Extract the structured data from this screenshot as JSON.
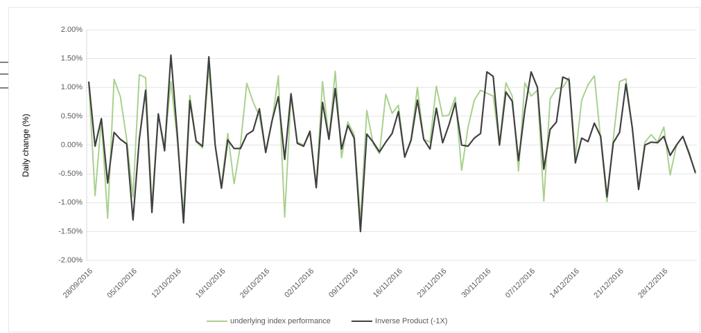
{
  "chart_data": {
    "type": "line",
    "y_label": "Daily change (%)",
    "categories": [
      "28/09/2016",
      null,
      null,
      null,
      null,
      null,
      null,
      "05/10/2016",
      null,
      null,
      null,
      null,
      null,
      null,
      "12/10/2016",
      null,
      null,
      null,
      null,
      null,
      null,
      "19/10/2016",
      null,
      null,
      null,
      null,
      null,
      null,
      "26/10/2016",
      null,
      null,
      null,
      null,
      null,
      null,
      "02/11/2016",
      null,
      null,
      null,
      null,
      null,
      null,
      "09/11/2016",
      null,
      null,
      null,
      null,
      null,
      null,
      "16/11/2016",
      null,
      null,
      null,
      null,
      null,
      null,
      "23/11/2016",
      null,
      null,
      null,
      null,
      null,
      null,
      "30/11/2016",
      null,
      null,
      null,
      null,
      null,
      null,
      "07/12/2016",
      null,
      null,
      null,
      null,
      null,
      null,
      "14/12/2016",
      null,
      null,
      null,
      null,
      null,
      null,
      "21/12/2016",
      null,
      null,
      null,
      null,
      null,
      null,
      "28/12/2016",
      null,
      null,
      null,
      null,
      null
    ],
    "series": [
      {
        "name": "underlying index performance",
        "color": "#a9d18e",
        "values": [
          1.1,
          -0.88,
          0.44,
          -1.27,
          1.14,
          0.84,
          0.1,
          -0.9,
          1.22,
          1.17,
          -1.05,
          0.5,
          0.0,
          1.1,
          0.1,
          -1.2,
          0.86,
          0.05,
          -0.05,
          1.35,
          0.0,
          -0.7,
          0.2,
          -0.67,
          0.0,
          1.07,
          0.75,
          0.5,
          -0.1,
          0.4,
          1.2,
          -1.25,
          0.85,
          0.05,
          0.0,
          0.2,
          -0.7,
          1.1,
          0.1,
          1.28,
          -0.22,
          0.4,
          0.18,
          -1.3,
          0.6,
          0.02,
          -0.15,
          0.88,
          0.55,
          0.69,
          -0.2,
          0.1,
          1.0,
          0.1,
          0.05,
          1.02,
          0.5,
          0.52,
          0.83,
          -0.44,
          0.3,
          0.78,
          0.95,
          0.9,
          0.85,
          0.0,
          1.08,
          0.85,
          -0.45,
          1.08,
          0.85,
          0.95,
          -0.97,
          0.8,
          0.98,
          1.0,
          1.17,
          -0.2,
          0.78,
          1.05,
          1.2,
          0.1,
          -0.98,
          0.1,
          1.1,
          1.15,
          0.3,
          -0.75,
          0.05,
          0.18,
          0.05,
          0.31,
          -0.52,
          0.0,
          0.15,
          -0.12,
          -0.5
        ]
      },
      {
        "name": "Inverse Product (-1X)",
        "color": "#404040",
        "values": [
          1.1,
          -0.02,
          0.46,
          -0.66,
          0.22,
          0.1,
          0.02,
          -1.3,
          0.1,
          0.95,
          -1.17,
          0.54,
          -0.1,
          1.56,
          0.2,
          -1.35,
          0.77,
          0.07,
          -0.02,
          1.53,
          0.0,
          -0.75,
          0.09,
          -0.06,
          -0.06,
          0.18,
          0.25,
          0.63,
          -0.13,
          0.42,
          0.84,
          -0.25,
          0.89,
          0.03,
          -0.02,
          0.24,
          -0.74,
          0.74,
          0.1,
          0.98,
          -0.07,
          0.34,
          0.12,
          -1.5,
          0.19,
          0.05,
          -0.12,
          0.05,
          0.2,
          0.58,
          -0.21,
          0.08,
          0.78,
          0.1,
          -0.07,
          0.64,
          0.04,
          0.35,
          0.73,
          0.0,
          -0.02,
          0.12,
          0.2,
          1.27,
          1.19,
          0.0,
          0.92,
          0.76,
          -0.27,
          0.6,
          1.27,
          1.0,
          -0.42,
          0.27,
          0.4,
          1.18,
          1.13,
          -0.31,
          0.12,
          0.06,
          0.38,
          0.15,
          -0.9,
          0.04,
          0.22,
          1.06,
          0.3,
          -0.77,
          0.0,
          0.05,
          0.04,
          0.15,
          -0.18,
          0.0,
          0.15,
          -0.15,
          -0.48
        ]
      }
    ],
    "ylim": [
      -2,
      2
    ],
    "yticks": [
      {
        "value": -2,
        "label": "-2.00%"
      },
      {
        "value": -1.5,
        "label": "-1.50%"
      },
      {
        "value": -1,
        "label": "-1.00%"
      },
      {
        "value": -0.5,
        "label": "-0.50%"
      },
      {
        "value": 0,
        "label": "0.00%"
      },
      {
        "value": 0.5,
        "label": "0.50%"
      },
      {
        "value": 1,
        "label": "1.00%"
      },
      {
        "value": 1.5,
        "label": "1.50%"
      },
      {
        "value": 2,
        "label": "2.00%"
      }
    ],
    "grid": true,
    "legend": "bottom"
  }
}
